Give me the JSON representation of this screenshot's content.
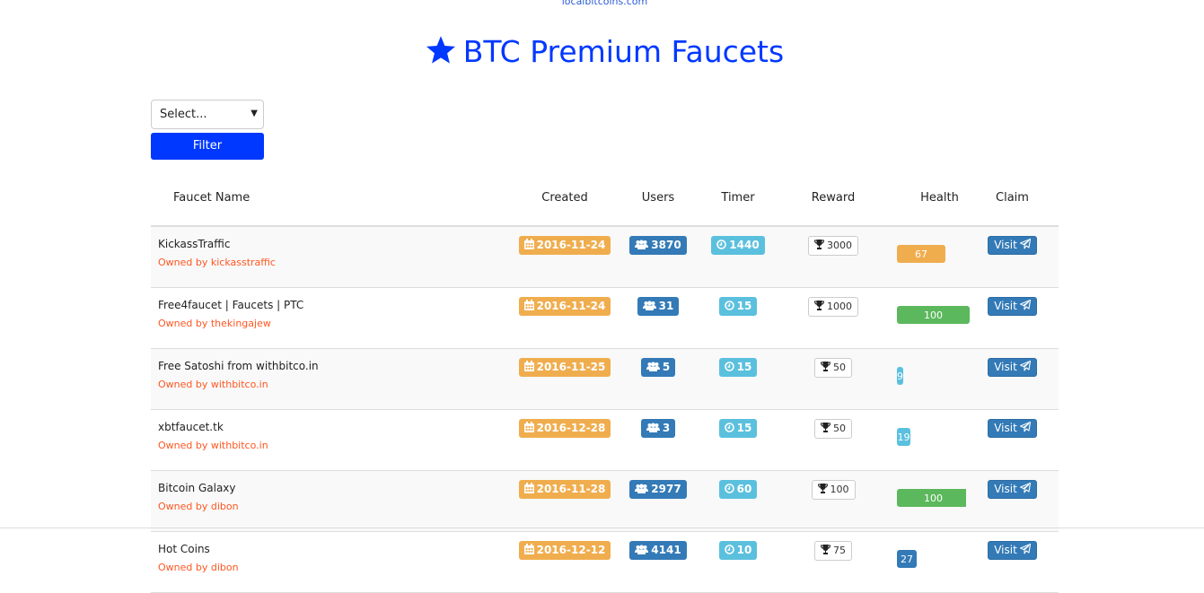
{
  "top_link": "localbitcoins.com",
  "title": "BTC Premium Faucets",
  "filter": {
    "select_value": "Select...",
    "button": "Filter"
  },
  "columns": [
    "Faucet Name",
    "Created",
    "Users",
    "Timer",
    "Reward",
    "Health",
    "Claim"
  ],
  "colors": {
    "title": "#0038ff",
    "owner": "#ff5722",
    "created": "#f0ad4e",
    "users": "#337ab7",
    "timer": "#5bc0de"
  },
  "rows": [
    {
      "name": "KickassTraffic",
      "owner": "Owned by kickasstraffic",
      "created": "2016-11-24",
      "users": "3870",
      "timer": "1440",
      "reward": "3000",
      "health": "67",
      "health_status": "warning",
      "claim": "Visit"
    },
    {
      "name": "Free4faucet | Faucets | PTC",
      "owner": "Owned by thekingajew",
      "created": "2016-11-24",
      "users": "31",
      "timer": "15",
      "reward": "1000",
      "health": "100",
      "health_status": "success",
      "claim": "Visit"
    },
    {
      "name": "Free Satoshi from withbitco.in",
      "owner": "Owned by withbitco.in",
      "created": "2016-11-25",
      "users": "5",
      "timer": "15",
      "reward": "50",
      "health": "9",
      "health_status": "info",
      "claim": "Visit"
    },
    {
      "name": "xbtfaucet.tk",
      "owner": "Owned by withbitco.in",
      "created": "2016-12-28",
      "users": "3",
      "timer": "15",
      "reward": "50",
      "health": "19",
      "health_status": "info",
      "claim": "Visit"
    },
    {
      "name": "Bitcoin Galaxy",
      "owner": "Owned by dibon",
      "created": "2016-11-28",
      "users": "2977",
      "timer": "60",
      "reward": "100",
      "health": "100",
      "health_status": "success",
      "claim": "Visit"
    },
    {
      "name": "Hot Coins",
      "owner": "Owned by dibon",
      "created": "2016-12-12",
      "users": "4141",
      "timer": "10",
      "reward": "75",
      "health": "27",
      "health_status": "primary",
      "claim": "Visit"
    }
  ]
}
